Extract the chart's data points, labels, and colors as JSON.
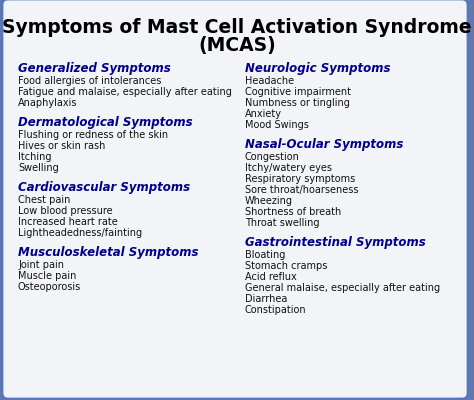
{
  "title_line1": "Symptoms of Mast Cell Activation Syndrome",
  "title_line2": "(MCAS)",
  "title_fontsize": 13.5,
  "title_color": "#000000",
  "heading_color": "#00008B",
  "body_color": "#111111",
  "bg_color": "#f2f4f8",
  "border_color": "#5577bb",
  "outer_bg": "#6677aa",
  "left_sections": [
    {
      "heading": "Generalized Symptoms",
      "items": [
        "Food allergies of intolerances",
        "Fatigue and malaise, especially after eating",
        "Anaphylaxis"
      ]
    },
    {
      "heading": "Dermatological Symptoms",
      "items": [
        "Flushing or redness of the skin",
        "Hives or skin rash",
        "Itching",
        "Swelling"
      ]
    },
    {
      "heading": "Cardiovascular Symptoms",
      "items": [
        "Chest pain",
        "Low blood pressure",
        "Increased heart rate",
        "Lightheadedness/fainting"
      ]
    },
    {
      "heading": "Musculoskeletal Symptoms",
      "items": [
        "Joint pain",
        "Muscle pain",
        "Osteoporosis"
      ]
    }
  ],
  "right_sections": [
    {
      "heading": "Neurologic Symptoms",
      "items": [
        "Headache",
        "Cognitive impairment",
        "Numbness or tingling",
        "Anxiety",
        "Mood Swings"
      ]
    },
    {
      "heading": "Nasal-Ocular Symptoms",
      "items": [
        "Congestion",
        "Itchy/watery eyes",
        "Respiratory symptoms",
        "Sore throat/hoarseness",
        "Wheezing",
        "Shortness of breath",
        "Throat swelling"
      ]
    },
    {
      "heading": "Gastrointestinal Symptoms",
      "items": [
        "Bloating",
        "Stomach cramps",
        "Acid reflux",
        "General malaise, especially after eating",
        "Diarrhea",
        "Constipation"
      ]
    }
  ],
  "heading_fontsize": 8.5,
  "body_fontsize": 7.0,
  "figsize": [
    4.74,
    4.0
  ],
  "dpi": 100
}
